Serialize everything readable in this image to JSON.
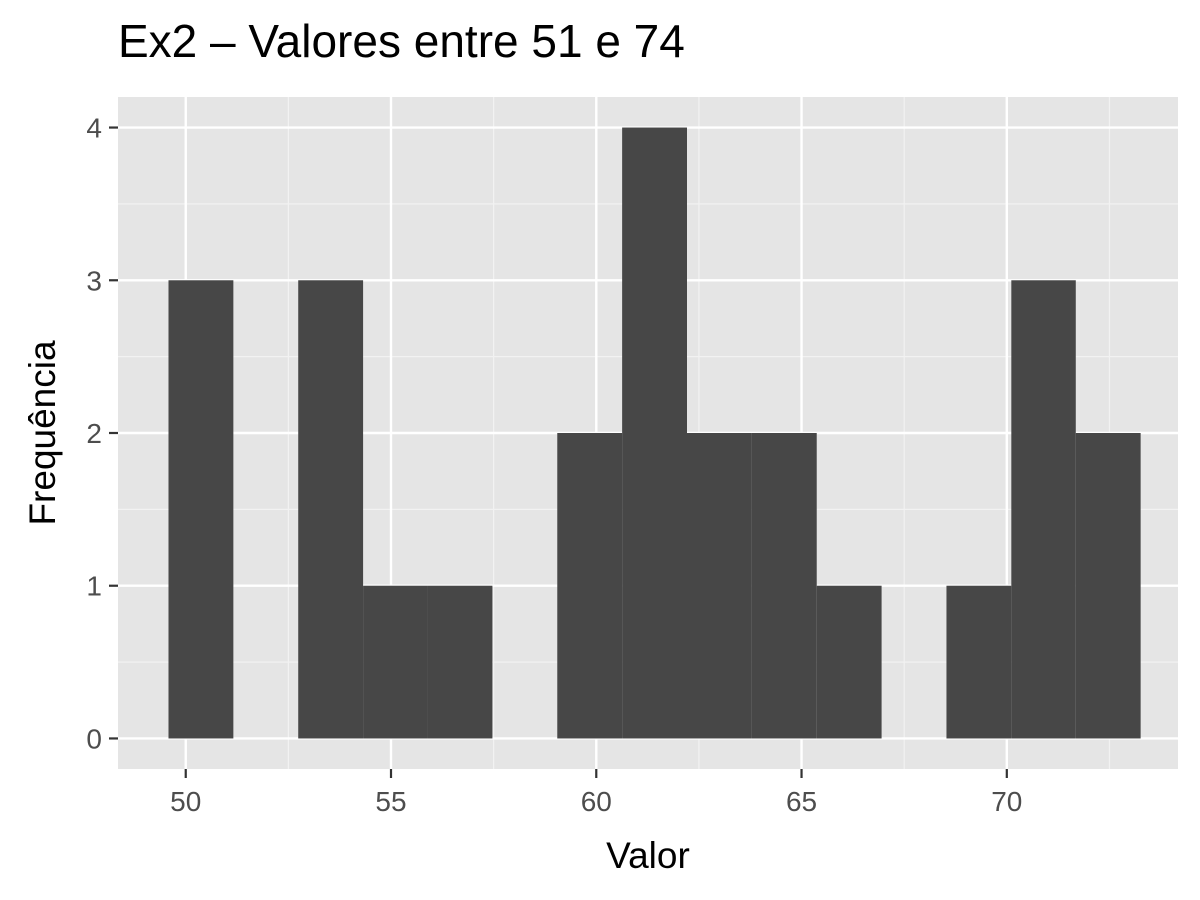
{
  "chart_data": {
    "type": "bar",
    "title": "Ex2 – Valores entre 51 e 74",
    "xlabel": "Valor",
    "ylabel": "Frequência",
    "xlim": [
      48.35,
      74.17
    ],
    "ylim": [
      -0.2,
      4.2
    ],
    "xticks": [
      50,
      55,
      60,
      65,
      70
    ],
    "yticks": [
      0,
      1,
      2,
      3,
      4
    ],
    "grid": true,
    "bar_color": "#474747",
    "panel_color": "#e5e5e5",
    "bins": [
      {
        "x0": 49.58,
        "x1": 51.16,
        "count": 3
      },
      {
        "x0": 51.16,
        "x1": 52.74,
        "count": 0
      },
      {
        "x0": 52.74,
        "x1": 54.32,
        "count": 3
      },
      {
        "x0": 54.32,
        "x1": 55.89,
        "count": 1
      },
      {
        "x0": 55.89,
        "x1": 57.47,
        "count": 1
      },
      {
        "x0": 57.47,
        "x1": 59.05,
        "count": 0
      },
      {
        "x0": 59.05,
        "x1": 60.63,
        "count": 2
      },
      {
        "x0": 60.63,
        "x1": 62.21,
        "count": 4
      },
      {
        "x0": 62.21,
        "x1": 63.79,
        "count": 2
      },
      {
        "x0": 63.79,
        "x1": 65.37,
        "count": 2
      },
      {
        "x0": 65.37,
        "x1": 66.95,
        "count": 1
      },
      {
        "x0": 66.95,
        "x1": 68.53,
        "count": 0
      },
      {
        "x0": 68.53,
        "x1": 70.11,
        "count": 1
      },
      {
        "x0": 70.11,
        "x1": 71.68,
        "count": 3
      },
      {
        "x0": 71.68,
        "x1": 73.26,
        "count": 2
      }
    ]
  }
}
